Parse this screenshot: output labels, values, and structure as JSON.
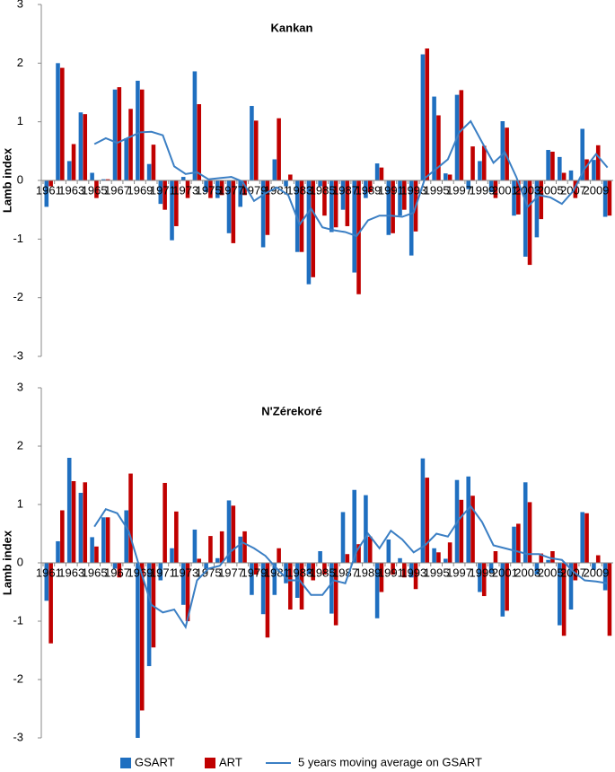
{
  "chart_data": [
    {
      "type": "bar",
      "title": "Kankan",
      "y_label": "Lamb index",
      "categories": [
        "1961",
        null,
        "1963",
        null,
        "1965",
        null,
        "1967",
        null,
        "1969",
        null,
        "1971",
        null,
        "1973",
        null,
        "1975",
        null,
        "1977",
        null,
        "1979",
        null,
        "1981",
        null,
        "1983",
        null,
        "1985",
        null,
        "1987",
        null,
        "1989",
        null,
        "1991",
        null,
        "1993",
        null,
        "1995",
        null,
        "1997",
        null,
        "1999",
        null,
        "2001",
        null,
        "2003",
        null,
        "2005",
        null,
        "2007",
        null,
        "2009",
        null
      ],
      "series": [
        {
          "name": "GSART",
          "type": "bar",
          "color": "#1f6fc0",
          "values": [
            -0.45,
            2.0,
            0.33,
            1.16,
            0.13,
            0.02,
            1.55,
            0.72,
            1.7,
            0.28,
            -0.4,
            -1.02,
            0.06,
            1.86,
            -0.2,
            -0.3,
            -0.9,
            -0.45,
            1.27,
            -1.14,
            0.36,
            -0.1,
            -1.22,
            -1.77,
            -0.1,
            -0.88,
            -0.5,
            -1.57,
            -0.3,
            0.29,
            -0.93,
            -0.6,
            -1.28,
            2.15,
            1.43,
            0.12,
            1.46,
            -0.15,
            0.33,
            -0.2,
            1.01,
            -0.6,
            -1.3,
            -0.97,
            0.52,
            0.4,
            0.17,
            0.88,
            0.35,
            -0.62
          ]
        },
        {
          "name": "ART",
          "type": "bar",
          "color": "#c00000",
          "values": [
            -0.1,
            1.92,
            0.62,
            1.13,
            -0.3,
            0.02,
            1.59,
            1.22,
            1.55,
            0.61,
            -0.5,
            -0.78,
            -0.3,
            1.3,
            -0.3,
            -0.25,
            -1.07,
            -0.25,
            1.02,
            -0.93,
            1.06,
            0.1,
            -1.22,
            -1.65,
            -0.6,
            -0.8,
            -0.78,
            -1.94,
            -0.2,
            0.22,
            -0.9,
            -0.5,
            -0.87,
            2.25,
            1.11,
            0.1,
            1.54,
            0.58,
            0.59,
            -0.3,
            0.9,
            -0.58,
            -1.44,
            -0.66,
            0.49,
            0.13,
            -0.3,
            0.36,
            0.6,
            -0.6
          ]
        },
        {
          "name": "5 years moving average on GSART",
          "type": "line",
          "color": "#3b7fc4",
          "values": [
            null,
            null,
            null,
            null,
            0.62,
            0.72,
            0.64,
            0.73,
            0.82,
            0.83,
            0.77,
            0.24,
            0.11,
            0.14,
            0.02,
            0.04,
            0.06,
            -0.02,
            -0.35,
            -0.22,
            -0.12,
            -0.25,
            -0.75,
            -0.48,
            -0.8,
            -0.85,
            -0.88,
            -0.95,
            -0.68,
            -0.6,
            -0.6,
            -0.62,
            -0.55,
            0.04,
            0.2,
            0.36,
            0.82,
            1.01,
            0.65,
            0.3,
            0.48,
            0.06,
            -0.45,
            -0.25,
            -0.29,
            -0.4,
            -0.18,
            0.2,
            0.45,
            0.22
          ]
        }
      ],
      "ylim": [
        -3,
        3
      ],
      "yticks": [
        -3,
        -2,
        -1,
        0,
        1,
        2,
        3
      ],
      "legend": "bottom"
    },
    {
      "type": "bar",
      "title": "N'Zérekoré",
      "y_label": "Lamb index",
      "categories": [
        "1961",
        null,
        "1963",
        null,
        "1965",
        null,
        "1967",
        null,
        "1969",
        null,
        "1971",
        null,
        "1973",
        null,
        "1975",
        null,
        "1977",
        null,
        "1979",
        null,
        "1981",
        null,
        "1983",
        null,
        "1985",
        null,
        "1987",
        null,
        "1989",
        null,
        "1991",
        null,
        "1993",
        null,
        "1995",
        null,
        "1997",
        null,
        "1999",
        null,
        "2001",
        null,
        "2003",
        null,
        "2005",
        null,
        "2007",
        null,
        "2009",
        null
      ],
      "series": [
        {
          "type": "bar",
          "color": "#1f6fc0",
          "values": [
            -0.65,
            0.37,
            1.8,
            1.2,
            0.44,
            0.78,
            -0.1,
            0.9,
            -3.0,
            -1.77,
            -0.3,
            0.25,
            -0.72,
            0.57,
            -0.1,
            0.08,
            1.07,
            0.45,
            -0.55,
            -0.88,
            -0.55,
            -0.35,
            -0.6,
            -0.2,
            0.2,
            -0.87,
            0.87,
            1.25,
            1.16,
            -0.95,
            0.4,
            0.08,
            -0.25,
            1.79,
            0.25,
            0.07,
            1.42,
            1.48,
            -0.5,
            -0.17,
            -0.92,
            0.62,
            1.38,
            -0.2,
            0.05,
            -1.07,
            -0.8,
            0.87,
            -0.12,
            -0.47
          ]
        },
        {
          "type": "bar",
          "color": "#c00000",
          "values": [
            -1.38,
            0.9,
            1.4,
            1.38,
            0.28,
            0.78,
            -0.25,
            1.53,
            -2.53,
            -1.45,
            1.37,
            0.88,
            -1.0,
            0.07,
            0.46,
            0.54,
            0.98,
            0.54,
            -0.2,
            -1.28,
            0.25,
            -0.8,
            -0.8,
            -0.3,
            -0.2,
            -1.07,
            0.15,
            0.32,
            0.45,
            -0.5,
            -0.2,
            -0.25,
            -0.45,
            1.46,
            0.18,
            0.35,
            1.08,
            1.15,
            -0.57,
            0.2,
            -0.82,
            0.67,
            1.04,
            0.16,
            0.2,
            -1.25,
            -0.3,
            0.85,
            0.13,
            -1.25
          ]
        },
        {
          "type": "line",
          "color": "#3b7fc4",
          "values": [
            null,
            null,
            null,
            null,
            0.62,
            0.92,
            0.85,
            0.55,
            -0.1,
            -0.72,
            -0.85,
            -0.8,
            -1.1,
            -0.3,
            -0.1,
            -0.05,
            0.2,
            0.35,
            0.25,
            0.12,
            -0.1,
            -0.3,
            -0.3,
            -0.55,
            -0.55,
            -0.3,
            -0.35,
            0.2,
            0.5,
            0.25,
            0.55,
            0.4,
            0.18,
            0.3,
            0.5,
            0.45,
            0.75,
            0.97,
            0.7,
            0.3,
            0.25,
            0.2,
            0.15,
            0.15,
            0.08,
            0.05,
            -0.15,
            -0.3,
            -0.32,
            -0.35
          ]
        }
      ],
      "ylim": [
        -3,
        3
      ],
      "yticks": [
        -3,
        -2,
        -1,
        0,
        1,
        2,
        3
      ]
    }
  ]
}
